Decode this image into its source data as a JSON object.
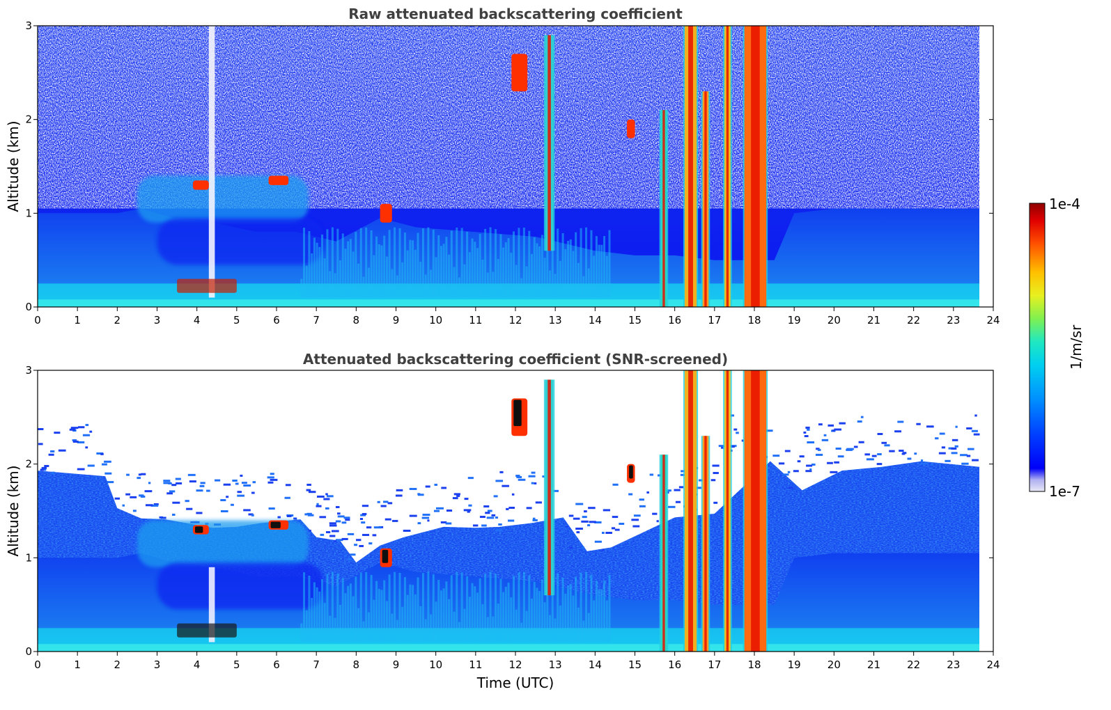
{
  "chart_data": [
    {
      "type": "heatmap",
      "title": "Raw attenuated backscattering coefficient",
      "xlabel": "",
      "ylabel": "Altitude (km)",
      "xlim": [
        0,
        24
      ],
      "ylim": [
        0,
        3
      ],
      "xticks": [
        "0",
        "1",
        "2",
        "3",
        "4",
        "5",
        "6",
        "7",
        "8",
        "9",
        "10",
        "11",
        "12",
        "13",
        "14",
        "15",
        "16",
        "17",
        "18",
        "19",
        "20",
        "21",
        "22",
        "23",
        "24"
      ],
      "yticks": [
        "0",
        "1",
        "2",
        "3"
      ],
      "data_end_time": 23.65,
      "layers": [
        {
          "name": "surface-aerosol-layer",
          "t": [
            0,
            23.65
          ],
          "z": [
            0,
            0.25
          ],
          "color": "#18c8f0"
        },
        {
          "name": "boundary-layer",
          "t": [
            0,
            19
          ],
          "z": [
            0.25,
            1.0
          ],
          "color": "#1a78f2"
        },
        {
          "name": "residual-layer",
          "t": [
            2.5,
            6.8
          ],
          "z": [
            0.9,
            1.4
          ],
          "color": "#1e9cf0"
        }
      ],
      "cloud_columns": [
        {
          "t": [
            15.65,
            15.8
          ],
          "z": [
            0,
            2.1
          ],
          "color": "#28d8c0"
        },
        {
          "t": [
            16.25,
            16.55
          ],
          "z": [
            0,
            3.0
          ],
          "color": "#f0b020"
        },
        {
          "t": [
            16.7,
            16.85
          ],
          "z": [
            0,
            2.3
          ],
          "color": "#ff9a20"
        },
        {
          "t": [
            17.25,
            17.4
          ],
          "z": [
            0,
            3.0
          ],
          "color": "#f0c020"
        },
        {
          "t": [
            17.75,
            18.3
          ],
          "z": [
            0,
            3.0
          ],
          "color": "#ff6a10"
        },
        {
          "t": [
            12.75,
            12.95
          ],
          "z": [
            0.6,
            2.9
          ],
          "color": "#30d0d0"
        }
      ],
      "cloud_patches": [
        {
          "t": [
            3.9,
            4.3
          ],
          "z": [
            1.25,
            1.35
          ]
        },
        {
          "t": [
            5.8,
            6.3
          ],
          "z": [
            1.3,
            1.4
          ]
        },
        {
          "t": [
            8.6,
            8.9
          ],
          "z": [
            0.9,
            1.1
          ]
        },
        {
          "t": [
            11.9,
            12.3
          ],
          "z": [
            2.3,
            2.7
          ]
        },
        {
          "t": [
            14.8,
            15.0
          ],
          "z": [
            1.8,
            2.0
          ]
        }
      ]
    },
    {
      "type": "heatmap",
      "title": "Attenuated backscattering coefficient (SNR-screened)",
      "xlabel": "Time (UTC)",
      "ylabel": "Altitude (km)",
      "xlim": [
        0,
        24
      ],
      "ylim": [
        0,
        3
      ],
      "xticks": [
        "0",
        "1",
        "2",
        "3",
        "4",
        "5",
        "6",
        "7",
        "8",
        "9",
        "10",
        "11",
        "12",
        "13",
        "14",
        "15",
        "16",
        "17",
        "18",
        "19",
        "20",
        "21",
        "22",
        "23",
        "24"
      ],
      "yticks": [
        "0",
        "1",
        "2",
        "3"
      ],
      "data_end_time": 23.65,
      "screened": true
    }
  ],
  "colorbar": {
    "label": "1/m/sr",
    "max_label": "1e-4",
    "min_label": "1e-7",
    "scale": "log",
    "colormap": "jet",
    "stops": [
      "#e8e8f6",
      "#a8a8f0",
      "#0000f8",
      "#0060ff",
      "#00b0ff",
      "#10e0e0",
      "#70f060",
      "#e0f020",
      "#ffc000",
      "#ff6000",
      "#f01000",
      "#a00000"
    ]
  }
}
